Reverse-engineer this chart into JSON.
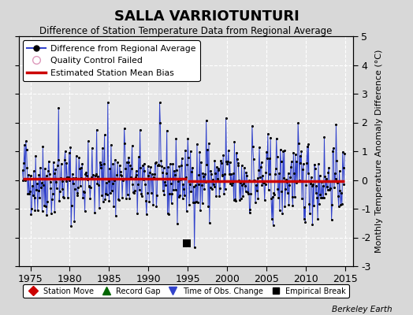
{
  "title": "SALLA VARRIOTUNTURI",
  "subtitle": "Difference of Station Temperature Data from Regional Average",
  "ylabel_right": "Monthly Temperature Anomaly Difference (°C)",
  "credit": "Berkeley Earth",
  "xlim": [
    1973.5,
    2016.0
  ],
  "ylim": [
    -3,
    5
  ],
  "yticks": [
    -3,
    -2,
    -1,
    0,
    1,
    2,
    3,
    4,
    5
  ],
  "xticks": [
    1975,
    1980,
    1985,
    1990,
    1995,
    2000,
    2005,
    2010,
    2015
  ],
  "line_color": "#3344cc",
  "marker_color": "#000000",
  "bias_color": "#cc0000",
  "bias_value_early": 0.05,
  "bias_value_late": -0.05,
  "bias_break_year": 1994.92,
  "empirical_break_year": 1994.92,
  "empirical_break_value": -2.2,
  "plot_bg": "#e8e8e8",
  "fig_bg": "#d8d8d8",
  "grid_color": "#ffffff",
  "seed": 42
}
